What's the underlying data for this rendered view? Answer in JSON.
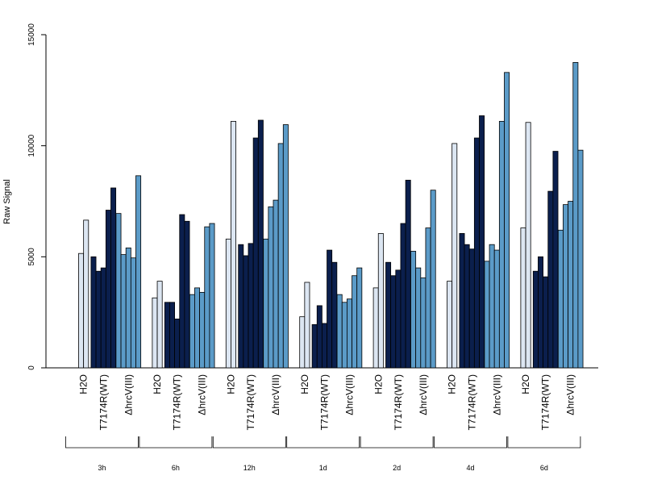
{
  "chart_data": {
    "type": "bar",
    "title": "",
    "ylabel": "Raw Signal",
    "xlabel": "",
    "ylim": [
      0,
      15000
    ],
    "yticks": [
      "0",
      "5000",
      "10000",
      "15000"
    ],
    "grid": false,
    "legend": "none",
    "conditions": [
      {
        "label": "H2O",
        "color": "#dce6f2"
      },
      {
        "label": "T7174R(WT)",
        "color": "#0b1f4d"
      },
      {
        "label": "ΔhrcV(III)",
        "color": "#5b9bc8"
      }
    ],
    "groups": [
      {
        "time": "3h",
        "series": [
          [
            5150,
            6650
          ],
          [
            5000,
            4350,
            4500,
            7100,
            8100
          ],
          [
            6950,
            5100,
            5400,
            4950,
            8650
          ]
        ]
      },
      {
        "time": "6h",
        "series": [
          [
            3150,
            3900
          ],
          [
            2950,
            2950,
            2200,
            6900,
            6600
          ],
          [
            3300,
            3600,
            3400,
            6350,
            6500
          ]
        ]
      },
      {
        "time": "12h",
        "series": [
          [
            5800,
            11100
          ],
          [
            5550,
            5050,
            5600,
            10350,
            11150
          ],
          [
            5800,
            7250,
            7550,
            10100,
            10950
          ]
        ]
      },
      {
        "time": "1d",
        "series": [
          [
            2300,
            3850
          ],
          [
            1950,
            2800,
            2000,
            5300,
            4750
          ],
          [
            3300,
            2950,
            3100,
            4150,
            4500
          ]
        ]
      },
      {
        "time": "2d",
        "series": [
          [
            3600,
            6050
          ],
          [
            4750,
            4150,
            4400,
            6500,
            8450
          ],
          [
            5250,
            4500,
            4050,
            6300,
            8000
          ]
        ]
      },
      {
        "time": "4d",
        "series": [
          [
            3900,
            10100
          ],
          [
            6050,
            5550,
            5350,
            10350,
            11350
          ],
          [
            4800,
            5550,
            5300,
            11100,
            13300
          ]
        ]
      },
      {
        "time": "6d",
        "series": [
          [
            6300,
            11050
          ],
          [
            4350,
            5000,
            4100,
            7950,
            9750
          ],
          [
            6200,
            7350,
            7500,
            13750,
            9800
          ]
        ]
      }
    ]
  }
}
